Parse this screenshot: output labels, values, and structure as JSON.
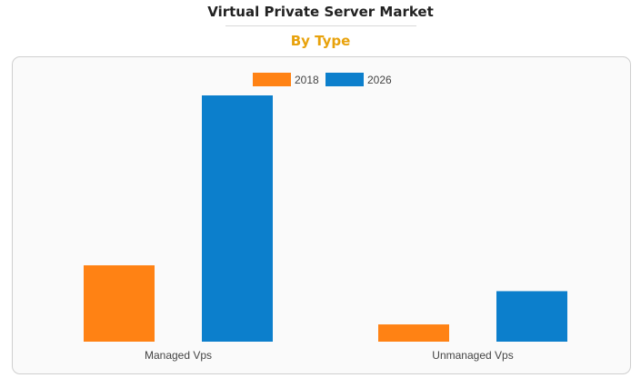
{
  "header": {
    "title": "Virtual Private Server Market",
    "subtitle": "By Type"
  },
  "colors": {
    "subtitle": "#e8a20c",
    "series_2018": "#ff8214",
    "series_2026": "#0c7fcc"
  },
  "chart_data": {
    "type": "bar",
    "categories": [
      "Managed Vps",
      "Unmanaged Vps"
    ],
    "series": [
      {
        "name": "2018",
        "values": [
          31,
          7
        ],
        "color": "#ff8214"
      },
      {
        "name": "2026",
        "values": [
          100,
          20.5
        ],
        "color": "#0c7fcc"
      }
    ],
    "title": "Virtual Private Server Market",
    "subtitle": "By Type",
    "xlabel": "",
    "ylabel": "",
    "ylim": [
      0,
      100
    ],
    "grid": false,
    "legend_position": "top-center"
  }
}
